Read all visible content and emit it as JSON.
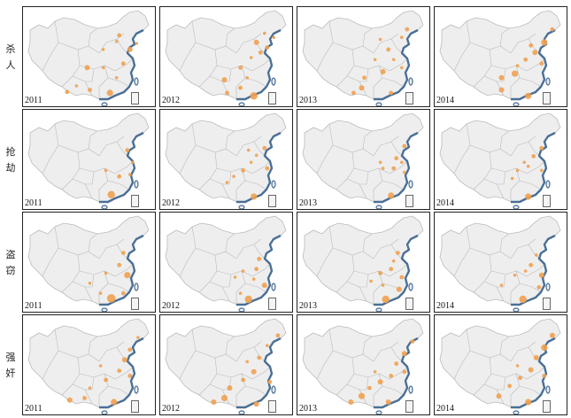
{
  "rows": [
    {
      "label_chars": [
        "杀",
        "人"
      ],
      "years": [
        "2011",
        "2012",
        "2013",
        "2014"
      ]
    },
    {
      "label_chars": [
        "抢",
        "劫"
      ],
      "years": [
        "2011",
        "2012",
        "2013",
        "2014"
      ]
    },
    {
      "label_chars": [
        "盗",
        "窃"
      ],
      "years": [
        "2011",
        "2012",
        "2013",
        "2014"
      ]
    },
    {
      "label_chars": [
        "强",
        "奸"
      ],
      "years": [
        "2011",
        "2012",
        "2013",
        "2014"
      ]
    }
  ],
  "colors": {
    "land": "#eeeeee",
    "border": "#bbbbbb",
    "coast": "#4a6f96",
    "point": "#f0a050",
    "frame": "#222222"
  },
  "points": {
    "r0c0": [
      [
        0.72,
        0.28,
        0.04
      ],
      [
        0.7,
        0.34,
        0.03
      ],
      [
        0.8,
        0.42,
        0.05
      ],
      [
        0.85,
        0.36,
        0.03
      ],
      [
        0.6,
        0.6,
        0.03
      ],
      [
        0.48,
        0.6,
        0.05
      ],
      [
        0.4,
        0.78,
        0.03
      ],
      [
        0.5,
        0.82,
        0.04
      ],
      [
        0.65,
        0.85,
        0.06
      ],
      [
        0.7,
        0.7,
        0.03
      ],
      [
        0.75,
        0.56,
        0.04
      ],
      [
        0.33,
        0.84,
        0.04
      ],
      [
        0.6,
        0.42,
        0.03
      ]
    ],
    "r0c1": [
      [
        0.72,
        0.35,
        0.05
      ],
      [
        0.75,
        0.45,
        0.04
      ],
      [
        0.8,
        0.4,
        0.04
      ],
      [
        0.68,
        0.5,
        0.03
      ],
      [
        0.6,
        0.6,
        0.04
      ],
      [
        0.48,
        0.72,
        0.05
      ],
      [
        0.6,
        0.8,
        0.04
      ],
      [
        0.7,
        0.88,
        0.07
      ],
      [
        0.5,
        0.85,
        0.04
      ],
      [
        0.85,
        0.3,
        0.03
      ],
      [
        0.78,
        0.26,
        0.03
      ],
      [
        0.65,
        0.7,
        0.03
      ]
    ],
    "r0c2": [
      [
        0.82,
        0.22,
        0.04
      ],
      [
        0.78,
        0.3,
        0.03
      ],
      [
        0.68,
        0.42,
        0.04
      ],
      [
        0.72,
        0.52,
        0.03
      ],
      [
        0.64,
        0.64,
        0.05
      ],
      [
        0.5,
        0.7,
        0.04
      ],
      [
        0.48,
        0.8,
        0.05
      ],
      [
        0.42,
        0.85,
        0.04
      ],
      [
        0.7,
        0.85,
        0.04
      ],
      [
        0.58,
        0.52,
        0.03
      ],
      [
        0.78,
        0.6,
        0.03
      ],
      [
        0.62,
        0.32,
        0.03
      ]
    ],
    "r0c3": [
      [
        0.88,
        0.22,
        0.04
      ],
      [
        0.82,
        0.35,
        0.06
      ],
      [
        0.75,
        0.45,
        0.05
      ],
      [
        0.72,
        0.38,
        0.04
      ],
      [
        0.68,
        0.52,
        0.04
      ],
      [
        0.6,
        0.66,
        0.06
      ],
      [
        0.5,
        0.7,
        0.05
      ],
      [
        0.5,
        0.82,
        0.05
      ],
      [
        0.7,
        0.88,
        0.06
      ],
      [
        0.8,
        0.56,
        0.04
      ],
      [
        0.62,
        0.58,
        0.03
      ]
    ],
    "r1c0": [
      [
        0.78,
        0.4,
        0.04
      ],
      [
        0.72,
        0.66,
        0.04
      ],
      [
        0.66,
        0.84,
        0.07
      ],
      [
        0.82,
        0.52,
        0.03
      ],
      [
        0.62,
        0.6,
        0.03
      ],
      [
        0.8,
        0.64,
        0.03
      ]
    ],
    "r1c1": [
      [
        0.78,
        0.38,
        0.04
      ],
      [
        0.72,
        0.45,
        0.03
      ],
      [
        0.68,
        0.52,
        0.03
      ],
      [
        0.62,
        0.6,
        0.04
      ],
      [
        0.55,
        0.66,
        0.03
      ],
      [
        0.5,
        0.72,
        0.03
      ],
      [
        0.7,
        0.86,
        0.06
      ],
      [
        0.8,
        0.58,
        0.04
      ],
      [
        0.66,
        0.4,
        0.03
      ]
    ],
    "r1c2": [
      [
        0.8,
        0.36,
        0.04
      ],
      [
        0.74,
        0.48,
        0.04
      ],
      [
        0.72,
        0.58,
        0.04
      ],
      [
        0.64,
        0.58,
        0.03
      ],
      [
        0.62,
        0.52,
        0.03
      ],
      [
        0.8,
        0.62,
        0.03
      ],
      [
        0.7,
        0.85,
        0.06
      ],
      [
        0.78,
        0.52,
        0.03
      ]
    ],
    "r1c3": [
      [
        0.8,
        0.38,
        0.04
      ],
      [
        0.74,
        0.46,
        0.04
      ],
      [
        0.7,
        0.56,
        0.03
      ],
      [
        0.62,
        0.6,
        0.03
      ],
      [
        0.58,
        0.68,
        0.03
      ],
      [
        0.7,
        0.86,
        0.06
      ],
      [
        0.8,
        0.6,
        0.03
      ],
      [
        0.67,
        0.52,
        0.03
      ]
    ],
    "r2c0": [
      [
        0.75,
        0.4,
        0.04
      ],
      [
        0.72,
        0.52,
        0.04
      ],
      [
        0.78,
        0.62,
        0.06
      ],
      [
        0.62,
        0.6,
        0.03
      ],
      [
        0.5,
        0.7,
        0.03
      ],
      [
        0.66,
        0.85,
        0.08
      ],
      [
        0.75,
        0.8,
        0.04
      ],
      [
        0.58,
        0.8,
        0.03
      ]
    ],
    "r2c1": [
      [
        0.74,
        0.46,
        0.04
      ],
      [
        0.72,
        0.56,
        0.04
      ],
      [
        0.62,
        0.58,
        0.03
      ],
      [
        0.56,
        0.64,
        0.03
      ],
      [
        0.66,
        0.86,
        0.07
      ],
      [
        0.78,
        0.72,
        0.05
      ],
      [
        0.6,
        0.8,
        0.03
      ],
      [
        0.7,
        0.66,
        0.03
      ]
    ],
    "r2c2": [
      [
        0.75,
        0.4,
        0.04
      ],
      [
        0.72,
        0.48,
        0.03
      ],
      [
        0.7,
        0.56,
        0.04
      ],
      [
        0.62,
        0.6,
        0.04
      ],
      [
        0.55,
        0.68,
        0.03
      ],
      [
        0.78,
        0.64,
        0.04
      ],
      [
        0.66,
        0.86,
        0.07
      ],
      [
        0.76,
        0.76,
        0.05
      ],
      [
        0.64,
        0.72,
        0.03
      ]
    ],
    "r2c3": [
      [
        0.76,
        0.42,
        0.03
      ],
      [
        0.72,
        0.52,
        0.04
      ],
      [
        0.68,
        0.58,
        0.03
      ],
      [
        0.6,
        0.62,
        0.03
      ],
      [
        0.5,
        0.72,
        0.03
      ],
      [
        0.66,
        0.86,
        0.07
      ],
      [
        0.8,
        0.62,
        0.05
      ],
      [
        0.78,
        0.74,
        0.04
      ]
    ],
    "r3c0": [
      [
        0.86,
        0.22,
        0.03
      ],
      [
        0.8,
        0.34,
        0.04
      ],
      [
        0.76,
        0.44,
        0.05
      ],
      [
        0.72,
        0.55,
        0.04
      ],
      [
        0.62,
        0.64,
        0.04
      ],
      [
        0.5,
        0.72,
        0.03
      ],
      [
        0.46,
        0.82,
        0.04
      ],
      [
        0.35,
        0.84,
        0.05
      ],
      [
        0.68,
        0.86,
        0.06
      ],
      [
        0.8,
        0.6,
        0.04
      ],
      [
        0.58,
        0.5,
        0.03
      ]
    ],
    "r3c1": [
      [
        0.88,
        0.2,
        0.04
      ],
      [
        0.8,
        0.3,
        0.03
      ],
      [
        0.74,
        0.42,
        0.04
      ],
      [
        0.7,
        0.56,
        0.05
      ],
      [
        0.62,
        0.64,
        0.04
      ],
      [
        0.52,
        0.72,
        0.05
      ],
      [
        0.48,
        0.82,
        0.06
      ],
      [
        0.4,
        0.86,
        0.05
      ],
      [
        0.72,
        0.88,
        0.05
      ],
      [
        0.82,
        0.66,
        0.04
      ],
      [
        0.65,
        0.46,
        0.03
      ]
    ],
    "r3c2": [
      [
        0.86,
        0.26,
        0.04
      ],
      [
        0.8,
        0.38,
        0.05
      ],
      [
        0.74,
        0.48,
        0.04
      ],
      [
        0.7,
        0.6,
        0.04
      ],
      [
        0.62,
        0.66,
        0.05
      ],
      [
        0.54,
        0.72,
        0.04
      ],
      [
        0.48,
        0.8,
        0.06
      ],
      [
        0.4,
        0.86,
        0.05
      ],
      [
        0.68,
        0.86,
        0.05
      ],
      [
        0.8,
        0.56,
        0.04
      ],
      [
        0.58,
        0.56,
        0.03
      ]
    ],
    "r3c3": [
      [
        0.88,
        0.2,
        0.05
      ],
      [
        0.82,
        0.32,
        0.06
      ],
      [
        0.76,
        0.42,
        0.05
      ],
      [
        0.72,
        0.54,
        0.05
      ],
      [
        0.64,
        0.62,
        0.04
      ],
      [
        0.56,
        0.7,
        0.04
      ],
      [
        0.48,
        0.8,
        0.05
      ],
      [
        0.7,
        0.86,
        0.06
      ],
      [
        0.82,
        0.6,
        0.04
      ],
      [
        0.62,
        0.5,
        0.03
      ]
    ]
  }
}
